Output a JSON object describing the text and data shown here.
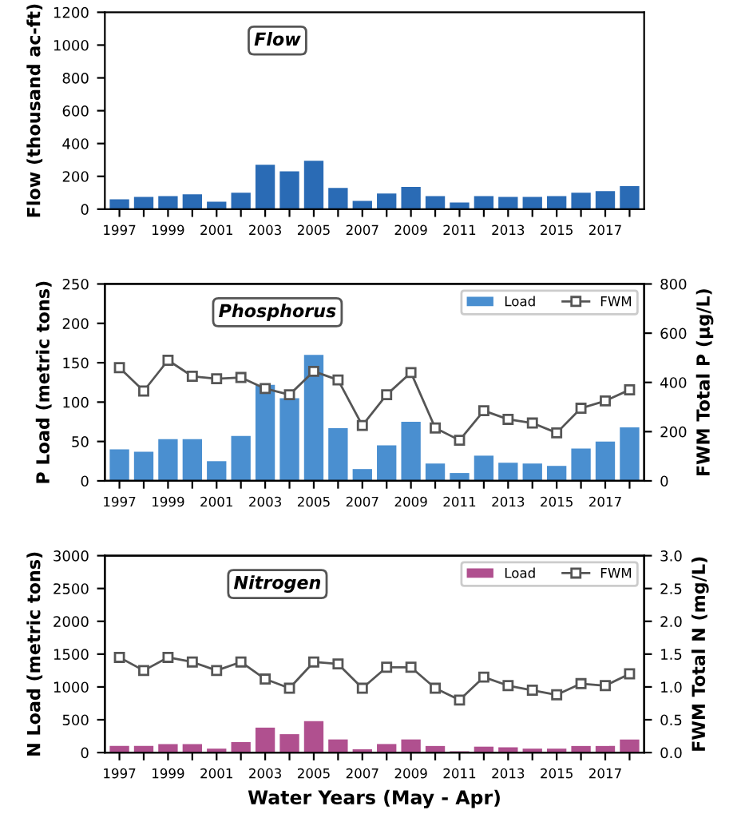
{
  "chart_data": [
    {
      "type": "bar",
      "title": "Flow",
      "ylabel": "Flow (thousand ac-ft)",
      "categories": [
        "1997",
        null,
        "1999",
        null,
        "2001",
        null,
        "2003",
        null,
        "2005",
        null,
        "2007",
        null,
        "2009",
        null,
        "2011",
        null,
        "2013",
        null,
        "2015",
        null,
        "2017",
        null
      ],
      "series": [
        {
          "color": "#2a6bb5",
          "values": [
            60,
            75,
            80,
            90,
            45,
            100,
            270,
            230,
            295,
            130,
            50,
            95,
            135,
            80,
            40,
            80,
            75,
            75,
            80,
            100,
            110,
            140
          ]
        }
      ],
      "ylim": [
        0,
        1200
      ],
      "yticks": [
        0,
        200,
        400,
        600,
        800,
        1000,
        1200
      ],
      "grid": false,
      "legend": false
    },
    {
      "type": "bar",
      "title": "Phosphorus",
      "ylabel": "P Load (metric tons)",
      "y2label": "FWM Total P (µg/L)",
      "categories": [
        "1997",
        null,
        "1999",
        null,
        "2001",
        null,
        "2003",
        null,
        "2005",
        null,
        "2007",
        null,
        "2009",
        null,
        "2011",
        null,
        "2013",
        null,
        "2015",
        null,
        "2017",
        null
      ],
      "series": [
        {
          "name": "Load",
          "color": "#4a8fd0",
          "values": [
            40,
            37,
            53,
            53,
            25,
            57,
            122,
            105,
            160,
            67,
            15,
            45,
            75,
            22,
            10,
            32,
            23,
            22,
            19,
            41,
            50,
            68
          ]
        },
        {
          "name": "FWM",
          "type": "line",
          "axis": "y2",
          "color": "#555555",
          "marker": "square",
          "values": [
            460,
            365,
            490,
            425,
            415,
            420,
            375,
            350,
            445,
            410,
            225,
            350,
            440,
            215,
            165,
            285,
            250,
            235,
            195,
            295,
            325,
            370
          ]
        }
      ],
      "ylim": [
        0,
        250
      ],
      "yticks": [
        0,
        50,
        100,
        150,
        200,
        250
      ],
      "y2lim": [
        0,
        800
      ],
      "y2ticks": [
        0,
        200,
        400,
        600,
        800
      ],
      "grid": false,
      "legend": "top right"
    },
    {
      "type": "bar",
      "title": "Nitrogen",
      "xlabel": "Water Years (May - Apr)",
      "ylabel": "N Load (metric tons)",
      "y2label": "FWM Total N (mg/L)",
      "categories": [
        "1997",
        null,
        "1999",
        null,
        "2001",
        null,
        "2003",
        null,
        "2005",
        null,
        "2007",
        null,
        "2009",
        null,
        "2011",
        null,
        "2013",
        null,
        "2015",
        null,
        "2017",
        null
      ],
      "series": [
        {
          "name": "Load",
          "color": "#b0508f",
          "values": [
            100,
            100,
            130,
            130,
            60,
            160,
            380,
            280,
            480,
            200,
            50,
            130,
            200,
            100,
            20,
            90,
            80,
            60,
            60,
            100,
            100,
            200
          ]
        },
        {
          "name": "FWM",
          "type": "line",
          "axis": "y2",
          "color": "#555555",
          "marker": "square",
          "values": [
            1.45,
            1.25,
            1.45,
            1.38,
            1.25,
            1.38,
            1.12,
            0.98,
            1.38,
            1.35,
            0.98,
            1.3,
            1.3,
            0.98,
            0.8,
            1.15,
            1.02,
            0.95,
            0.88,
            1.05,
            1.02,
            1.2
          ]
        }
      ],
      "ylim": [
        0,
        3000
      ],
      "yticks": [
        0,
        500,
        1000,
        1500,
        2000,
        2500,
        3000
      ],
      "y2lim": [
        0,
        3.0
      ],
      "y2ticks": [
        {
          "value": 0,
          "label": "0.0"
        },
        {
          "value": 0.5,
          "label": "0.5"
        },
        {
          "value": 1.0,
          "label": "1.0"
        },
        {
          "value": 1.5,
          "label": "1.5"
        },
        {
          "value": 2.0,
          "label": "2.0"
        },
        {
          "value": 2.5,
          "label": "2.5"
        },
        {
          "value": 3.0,
          "label": "3.0"
        }
      ],
      "grid": false,
      "legend": "top right"
    }
  ]
}
